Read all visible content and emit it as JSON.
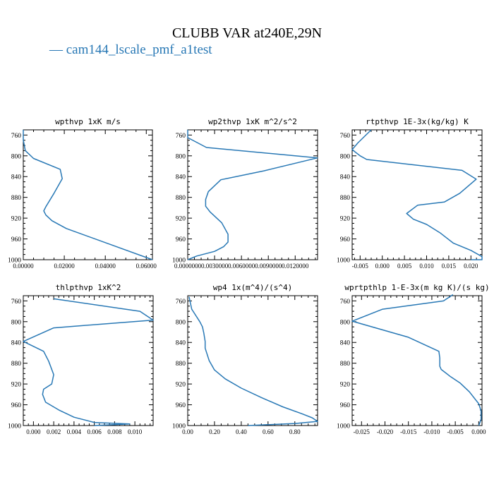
{
  "figure": {
    "title": "CLUBB VAR at240E,29N",
    "legend": [
      {
        "label": "cam144_lscale_pmf_a1test",
        "color": "#2878b5"
      }
    ]
  },
  "chart_data": [
    {
      "type": "line",
      "title": "wpthvp  1xK m/s",
      "y_ticks": [
        "760",
        "800",
        "840",
        "880",
        "920",
        "960",
        "1000"
      ],
      "x_ticks": [
        "0.00000",
        "0.02000",
        "0.04000",
        "0.06000"
      ],
      "xlim": [
        0,
        0.063
      ],
      "ylim": [
        750,
        1000
      ],
      "y_inverted": true,
      "series": [
        {
          "color": "#2878b5",
          "x": [
            0.0,
            0.0,
            0.001,
            0.005,
            0.018,
            0.019,
            0.015,
            0.011,
            0.01,
            0.011,
            0.014,
            0.021,
            0.063
          ],
          "y": [
            750,
            770,
            790,
            805,
            826,
            844,
            872,
            898,
            906,
            914,
            925,
            940,
            1000
          ]
        }
      ]
    },
    {
      "type": "line",
      "title": "wp2thvp  1xK m^2/s^2",
      "y_ticks": [
        "760",
        "800",
        "840",
        "880",
        "920",
        "960",
        "1000"
      ],
      "x_ticks": [
        "0.0000000",
        "0.0030000",
        "0.0060000",
        "0.0090000",
        "0.0120000"
      ],
      "xlim": [
        0,
        0.0145
      ],
      "ylim": [
        750,
        1000
      ],
      "y_inverted": true,
      "series": [
        {
          "color": "#2878b5",
          "x": [
            0.0,
            0.0,
            0.0021,
            0.0145,
            0.0085,
            0.0037,
            0.0023,
            0.002,
            0.002,
            0.0025,
            0.0038,
            0.0045,
            0.0045,
            0.004,
            0.003,
            0.001,
            0.0
          ],
          "y": [
            750,
            765,
            784,
            804,
            829,
            846,
            869,
            884,
            897,
            908,
            929,
            951,
            966,
            975,
            984,
            993,
            1000
          ]
        }
      ]
    },
    {
      "type": "line",
      "title": "rtpthvp  1E-3x(kg/kg) K",
      "y_ticks": [
        "760",
        "800",
        "840",
        "880",
        "920",
        "960",
        "1000"
      ],
      "x_ticks": [
        "-0.005",
        "0.000",
        "0.005",
        "0.010",
        "0.015",
        "0.020"
      ],
      "xlim": [
        -0.0068,
        0.0225
      ],
      "ylim": [
        750,
        1000
      ],
      "y_inverted": true,
      "series": [
        {
          "color": "#2878b5",
          "x": [
            -0.0025,
            -0.0055,
            -0.0068,
            -0.005,
            -0.0035,
            0.018,
            0.0212,
            0.0175,
            0.014,
            0.008,
            0.0055,
            0.007,
            0.01,
            0.013,
            0.016,
            0.02,
            0.0225,
            0.0225,
            0.02
          ],
          "y": [
            750,
            775,
            788,
            800,
            807,
            828,
            845,
            872,
            889,
            895,
            911,
            922,
            932,
            948,
            968,
            982,
            994,
            1000,
            1000
          ]
        }
      ]
    },
    {
      "type": "line",
      "title": "thlpthvp  1xK^2",
      "y_ticks": [
        "760",
        "800",
        "840",
        "880",
        "920",
        "960",
        "1000"
      ],
      "x_ticks": [
        "0.000",
        "0.002",
        "0.004",
        "0.006",
        "0.008",
        "0.010"
      ],
      "xlim": [
        -0.001,
        0.0118
      ],
      "ylim": [
        750,
        1000
      ],
      "y_inverted": true,
      "series": [
        {
          "color": "#2878b5",
          "x": [
            0.002,
            0.0105,
            0.0118,
            0.002,
            -0.001,
            0.001,
            0.0015,
            0.002,
            0.0018,
            0.001,
            0.0009,
            0.0012,
            0.0025,
            0.004,
            0.006,
            0.0095,
            0.006
          ],
          "y": [
            756,
            780,
            797,
            812,
            838,
            857,
            876,
            902,
            920,
            930,
            940,
            955,
            970,
            984,
            994,
            997,
            1000
          ]
        }
      ]
    },
    {
      "type": "line",
      "title": "wp4  1x(m^4)/(s^4)",
      "y_ticks": [
        "760",
        "800",
        "840",
        "880",
        "920",
        "960",
        "1000"
      ],
      "x_ticks": [
        "0.00",
        "0.20",
        "0.40",
        "0.60",
        "0.80"
      ],
      "xlim": [
        0,
        0.97
      ],
      "ylim": [
        750,
        1000
      ],
      "y_inverted": true,
      "series": [
        {
          "color": "#2878b5",
          "x": [
            0.01,
            0.03,
            0.09,
            0.11,
            0.12,
            0.13,
            0.13,
            0.16,
            0.2,
            0.28,
            0.4,
            0.55,
            0.71,
            0.85,
            0.93,
            0.97,
            0.8,
            0.45
          ],
          "y": [
            752,
            776,
            800,
            810,
            822,
            838,
            851,
            875,
            893,
            910,
            928,
            946,
            964,
            977,
            985,
            992,
            996,
            1000
          ]
        }
      ]
    },
    {
      "type": "line",
      "title": "wprtpthlp  1-E-3x(m kg K)/(s kg)",
      "y_ticks": [
        "760",
        "800",
        "840",
        "880",
        "920",
        "960",
        "1000"
      ],
      "x_ticks": [
        "-0.025",
        "-0.020",
        "-0.015",
        "-0.010",
        "-0.005",
        "0.000"
      ],
      "xlim": [
        -0.027,
        0.0007
      ],
      "ylim": [
        750,
        1000
      ],
      "y_inverted": true,
      "series": [
        {
          "color": "#2878b5",
          "x": [
            -0.0055,
            -0.0075,
            -0.0205,
            -0.027,
            -0.015,
            -0.0085,
            -0.0083,
            -0.0083,
            -0.008,
            -0.006,
            -0.004,
            -0.002,
            0.0,
            0.0005,
            0.0005,
            0.0
          ],
          "y": [
            748,
            760,
            776,
            799,
            830,
            857,
            870,
            886,
            892,
            906,
            918,
            935,
            958,
            972,
            988,
            1000
          ]
        }
      ]
    }
  ]
}
